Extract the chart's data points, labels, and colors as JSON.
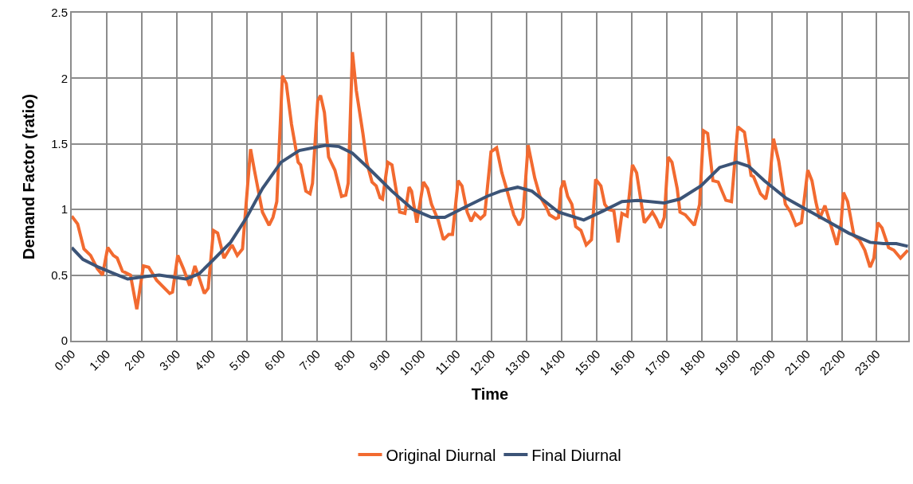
{
  "chart_data": {
    "type": "line",
    "xlabel": "Time",
    "ylabel": "Demand Factor (ratio)",
    "xlim": [
      0,
      23.9
    ],
    "ylim": [
      0,
      2.5
    ],
    "xticks": [
      {
        "value": 0,
        "label": "0:00"
      },
      {
        "value": 1,
        "label": "1:00"
      },
      {
        "value": 2,
        "label": "2:00"
      },
      {
        "value": 3,
        "label": "3:00"
      },
      {
        "value": 4,
        "label": "4:00"
      },
      {
        "value": 5,
        "label": "5:00"
      },
      {
        "value": 6,
        "label": "6:00"
      },
      {
        "value": 7,
        "label": "7:00"
      },
      {
        "value": 8,
        "label": "8:00"
      },
      {
        "value": 9,
        "label": "9:00"
      },
      {
        "value": 10,
        "label": "10:00"
      },
      {
        "value": 11,
        "label": "11:00"
      },
      {
        "value": 12,
        "label": "12:00"
      },
      {
        "value": 13,
        "label": "13:00"
      },
      {
        "value": 14,
        "label": "14:00"
      },
      {
        "value": 15,
        "label": "15:00"
      },
      {
        "value": 16,
        "label": "16:00"
      },
      {
        "value": 17,
        "label": "17:00"
      },
      {
        "value": 18,
        "label": "18:00"
      },
      {
        "value": 19,
        "label": "19:00"
      },
      {
        "value": 20,
        "label": "20:00"
      },
      {
        "value": 21,
        "label": "21:00"
      },
      {
        "value": 22,
        "label": "22:00"
      },
      {
        "value": 23,
        "label": "23:00"
      }
    ],
    "yticks": [
      0,
      0.5,
      1,
      1.5,
      2,
      2.5
    ],
    "grid": true,
    "legend": "bottom",
    "marker": "none",
    "line_style": "solid",
    "series": [
      {
        "name": "Original Diurnal",
        "color": "#f26a30",
        "x": [
          0,
          0.17,
          0.35,
          0.54,
          0.73,
          0.88,
          1.03,
          1.19,
          1.3,
          1.45,
          1.68,
          1.86,
          2.05,
          2.2,
          2.43,
          2.8,
          2.88,
          3.03,
          3.19,
          3.37,
          3.52,
          3.64,
          3.79,
          3.9,
          4.05,
          4.17,
          4.35,
          4.58,
          4.73,
          4.88,
          5.11,
          5.22,
          5.45,
          5.64,
          5.75,
          5.86,
          6.02,
          6.13,
          6.28,
          6.47,
          6.54,
          6.69,
          6.81,
          6.88,
          7.03,
          7.11,
          7.22,
          7.34,
          7.52,
          7.71,
          7.83,
          7.9,
          8.02,
          8.13,
          8.32,
          8.43,
          8.58,
          8.7,
          8.81,
          8.88,
          9.03,
          9.15,
          9.3,
          9.37,
          9.52,
          9.64,
          9.71,
          9.86,
          10.05,
          10.17,
          10.28,
          10.47,
          10.62,
          10.77,
          10.88,
          11.04,
          11.15,
          11.3,
          11.41,
          11.52,
          11.68,
          11.8,
          11.98,
          12.14,
          12.29,
          12.4,
          12.63,
          12.78,
          12.89,
          13.04,
          13.23,
          13.38,
          13.57,
          13.65,
          13.83,
          13.91,
          13.98,
          14.06,
          14.17,
          14.29,
          14.4,
          14.55,
          14.7,
          14.85,
          14.97,
          15.12,
          15.23,
          15.34,
          15.49,
          15.61,
          15.72,
          15.87,
          16.02,
          16.14,
          16.36,
          16.48,
          16.59,
          16.7,
          16.82,
          16.93,
          17.04,
          17.15,
          17.3,
          17.38,
          17.53,
          17.79,
          17.94,
          18.05,
          18.17,
          18.32,
          18.47,
          18.69,
          18.85,
          19.03,
          19.22,
          19.41,
          19.48,
          19.68,
          19.83,
          19.94,
          20.05,
          20.2,
          20.39,
          20.54,
          20.69,
          20.85,
          21.03,
          21.15,
          21.26,
          21.37,
          21.52,
          21.68,
          21.86,
          21.98,
          22.05,
          22.17,
          22.35,
          22.5,
          22.66,
          22.81,
          22.92,
          23.03,
          23.15,
          23.34,
          23.49,
          23.68,
          23.89
        ],
        "values": [
          0.95,
          0.89,
          0.7,
          0.65,
          0.55,
          0.5,
          0.71,
          0.65,
          0.63,
          0.53,
          0.5,
          0.24,
          0.57,
          0.56,
          0.46,
          0.36,
          0.37,
          0.65,
          0.55,
          0.42,
          0.57,
          0.48,
          0.36,
          0.4,
          0.84,
          0.82,
          0.63,
          0.73,
          0.65,
          0.7,
          1.46,
          1.3,
          0.98,
          0.88,
          0.94,
          1.06,
          2.02,
          1.96,
          1.65,
          1.36,
          1.34,
          1.14,
          1.12,
          1.2,
          1.83,
          1.87,
          1.74,
          1.4,
          1.3,
          1.1,
          1.11,
          1.2,
          2.2,
          1.91,
          1.58,
          1.36,
          1.21,
          1.18,
          1.09,
          1.08,
          1.36,
          1.34,
          1.1,
          0.98,
          0.97,
          1.17,
          1.14,
          0.9,
          1.21,
          1.16,
          1.04,
          0.92,
          0.77,
          0.81,
          0.81,
          1.22,
          1.18,
          0.98,
          0.91,
          0.97,
          0.93,
          0.96,
          1.44,
          1.47,
          1.28,
          1.18,
          0.96,
          0.88,
          0.94,
          1.49,
          1.24,
          1.1,
          1.01,
          0.96,
          0.93,
          0.94,
          1.16,
          1.22,
          1.1,
          1.04,
          0.87,
          0.84,
          0.73,
          0.77,
          1.23,
          1.18,
          1.04,
          1.0,
          0.99,
          0.75,
          0.97,
          0.95,
          1.34,
          1.28,
          0.9,
          0.94,
          0.98,
          0.93,
          0.86,
          0.94,
          1.4,
          1.36,
          1.16,
          0.98,
          0.96,
          0.88,
          1.04,
          1.6,
          1.58,
          1.22,
          1.21,
          1.07,
          1.06,
          1.63,
          1.59,
          1.26,
          1.25,
          1.12,
          1.08,
          1.22,
          1.54,
          1.37,
          1.04,
          0.98,
          0.88,
          0.9,
          1.3,
          1.22,
          1.06,
          0.93,
          1.03,
          0.89,
          0.73,
          0.89,
          1.13,
          1.06,
          0.8,
          0.77,
          0.69,
          0.56,
          0.63,
          0.9,
          0.86,
          0.71,
          0.69,
          0.63,
          0.69
        ]
      },
      {
        "name": "Final Diurnal",
        "color": "#3c5477",
        "x": [
          0,
          0.32,
          0.77,
          1.22,
          1.6,
          2.13,
          2.5,
          3.26,
          3.64,
          4.02,
          4.54,
          5.0,
          5.45,
          5.98,
          6.5,
          7.26,
          7.64,
          8.02,
          8.54,
          9.15,
          9.75,
          10.28,
          10.66,
          11.18,
          11.86,
          12.25,
          12.74,
          13.15,
          13.91,
          14.63,
          15.19,
          15.72,
          16.17,
          16.93,
          17.38,
          17.98,
          18.51,
          19.0,
          19.34,
          19.79,
          20.39,
          20.99,
          21.6,
          22.2,
          22.81,
          23.19,
          23.56,
          23.89
        ],
        "values": [
          0.71,
          0.62,
          0.56,
          0.51,
          0.47,
          0.49,
          0.5,
          0.47,
          0.51,
          0.61,
          0.75,
          0.94,
          1.16,
          1.36,
          1.45,
          1.49,
          1.48,
          1.43,
          1.3,
          1.14,
          1.0,
          0.94,
          0.94,
          1.01,
          1.1,
          1.14,
          1.17,
          1.14,
          0.98,
          0.92,
          0.99,
          1.06,
          1.07,
          1.05,
          1.08,
          1.18,
          1.32,
          1.36,
          1.33,
          1.22,
          1.09,
          1.0,
          0.91,
          0.82,
          0.75,
          0.74,
          0.74,
          0.72
        ]
      }
    ]
  }
}
